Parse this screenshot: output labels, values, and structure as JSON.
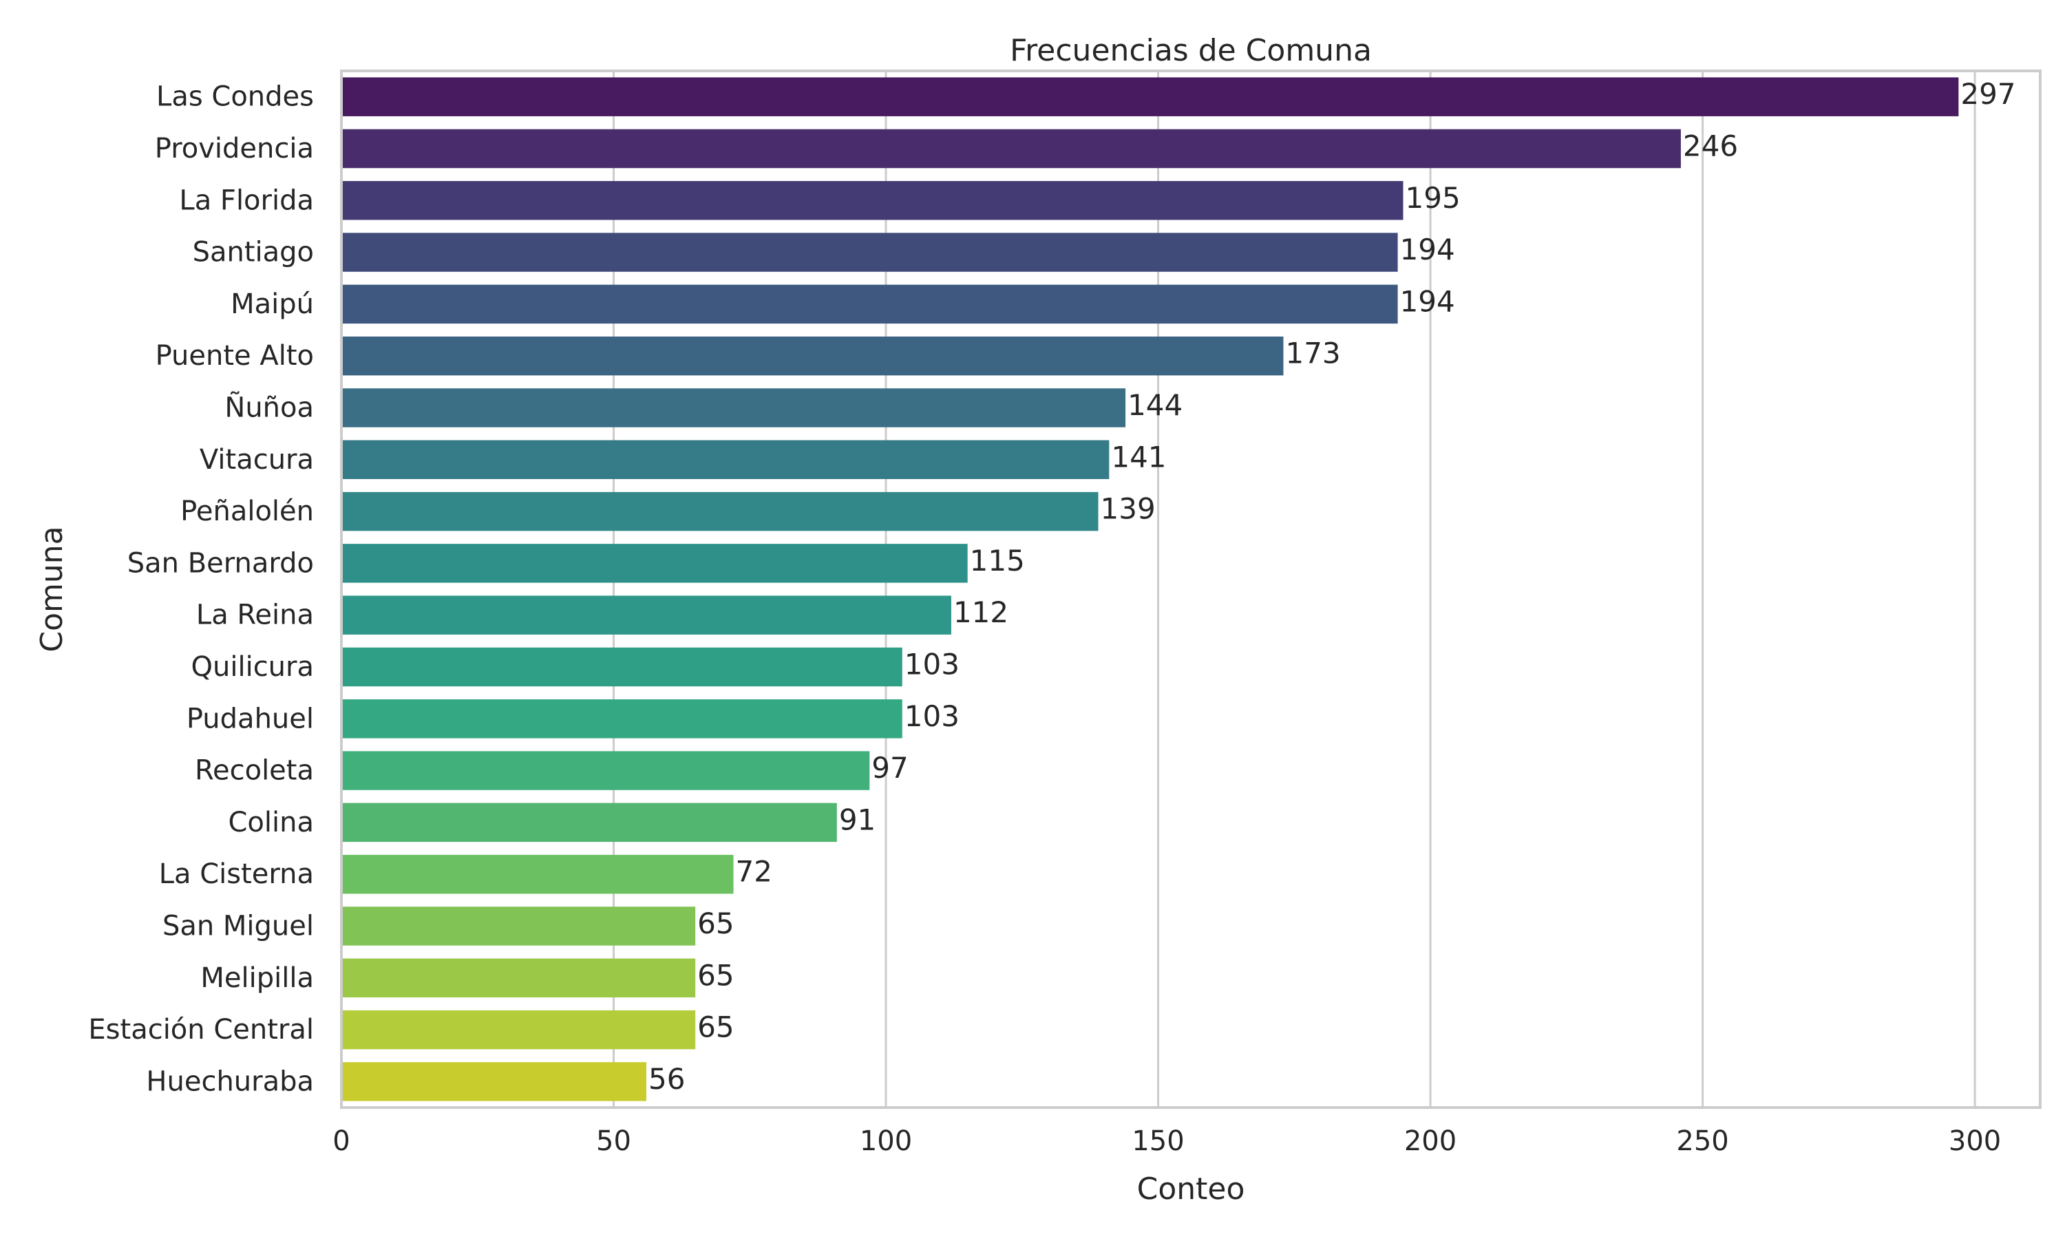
{
  "chart_data": {
    "type": "bar",
    "orientation": "horizontal",
    "title": "Frecuencias de Comuna",
    "xlabel": "Conteo",
    "ylabel": "Comuna",
    "xlim": [
      0,
      312
    ],
    "xticks": [
      0,
      50,
      100,
      150,
      200,
      250,
      300
    ],
    "grid": true,
    "colormap": "viridis",
    "categories": [
      "Las Condes",
      "Providencia",
      "La Florida",
      "Santiago",
      "Maipú",
      "Puente Alto",
      "Ñuñoa",
      "Vitacura",
      "Peñalolén",
      "San Bernardo",
      "La Reina",
      "Quilicura",
      "Pudahuel",
      "Recoleta",
      "Colina",
      "La Cisterna",
      "San Miguel",
      "Melipilla",
      "Estación Central",
      "Huechuraba"
    ],
    "values": [
      297,
      246,
      195,
      194,
      194,
      173,
      144,
      141,
      139,
      115,
      112,
      103,
      103,
      97,
      91,
      72,
      65,
      65,
      65,
      56
    ],
    "colors": [
      "#481a5f",
      "#482c6b",
      "#453b74",
      "#414b7a",
      "#3f5880",
      "#3c6483",
      "#3a6f86",
      "#367b88",
      "#328889",
      "#2f908a",
      "#2e978a",
      "#2f9f86",
      "#33a883",
      "#41b07a",
      "#52b570",
      "#6bc062",
      "#82c356",
      "#9bc847",
      "#b3cc39",
      "#c8cc2d"
    ]
  }
}
